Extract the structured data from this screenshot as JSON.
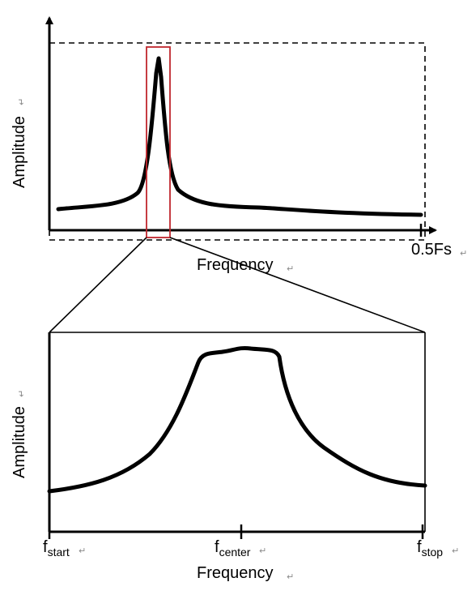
{
  "top_plot": {
    "y_axis_label": "Amplitude",
    "x_axis_label": "Frequency",
    "x_end_tick_label": "0.5Fs"
  },
  "bottom_plot": {
    "y_axis_label": "Amplitude",
    "x_axis_label": "Frequency",
    "ticks": {
      "start": {
        "base": "f",
        "sub": "start"
      },
      "center": {
        "base": "f",
        "sub": "center"
      },
      "stop": {
        "base": "f",
        "sub": "stop"
      }
    }
  },
  "colors": {
    "stroke": "#000000",
    "highlight": "#c0272d"
  },
  "paragraph_mark": "↵"
}
